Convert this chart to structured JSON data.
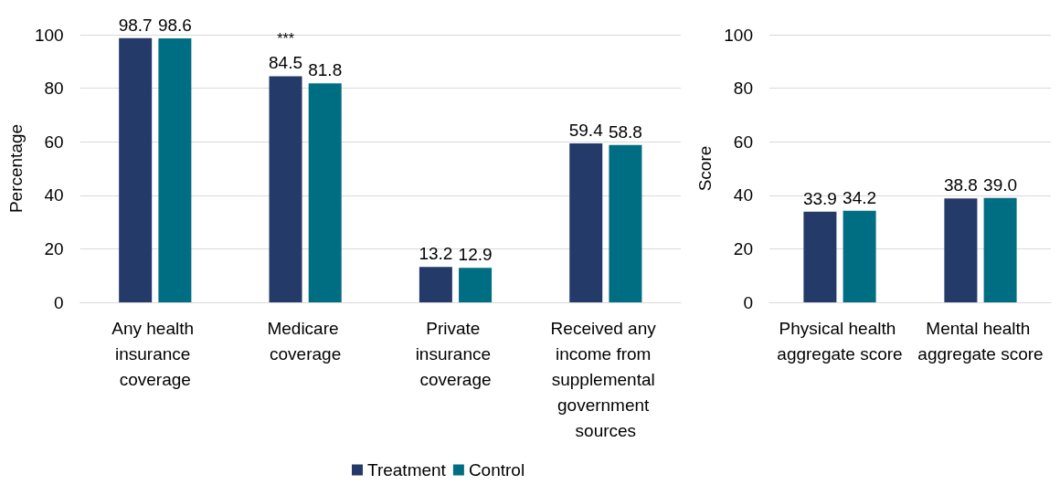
{
  "chart_data": [
    {
      "type": "bar",
      "ylabel": "Percentage",
      "categories": [
        "Any health insurance coverage",
        "Medicare coverage",
        "Private insurance coverage",
        "Received any income from supplemental government sources"
      ],
      "series": [
        {
          "name": "Treatment",
          "color": "#243a69",
          "values": [
            98.7,
            84.5,
            13.2,
            59.4
          ]
        },
        {
          "name": "Control",
          "color": "#006e82",
          "values": [
            98.6,
            81.8,
            12.9,
            58.8
          ]
        }
      ],
      "ylim": [
        0,
        100
      ],
      "yticks": [
        0,
        20,
        40,
        60,
        80,
        100
      ],
      "grid": "y",
      "data_labels": true,
      "legend": "bottom",
      "annotations": [
        {
          "text": "***",
          "x": "Medicare coverage",
          "y": 84.5
        }
      ]
    },
    {
      "type": "bar",
      "ylabel": "Score",
      "categories": [
        "Physical health aggregate score",
        "Mental health aggregate score"
      ],
      "series": [
        {
          "color": "#243a69",
          "values": [
            33.9,
            38.8
          ],
          "value_labels": [
            "33.9",
            "38.8"
          ]
        },
        {
          "color": "#006e82",
          "values": [
            34.2,
            39.0
          ],
          "value_labels": [
            "34.2",
            "39.0"
          ]
        }
      ],
      "ylim": [
        0,
        100
      ],
      "yticks": [
        0,
        20,
        40,
        60,
        80,
        100
      ],
      "grid": "y"
    }
  ]
}
